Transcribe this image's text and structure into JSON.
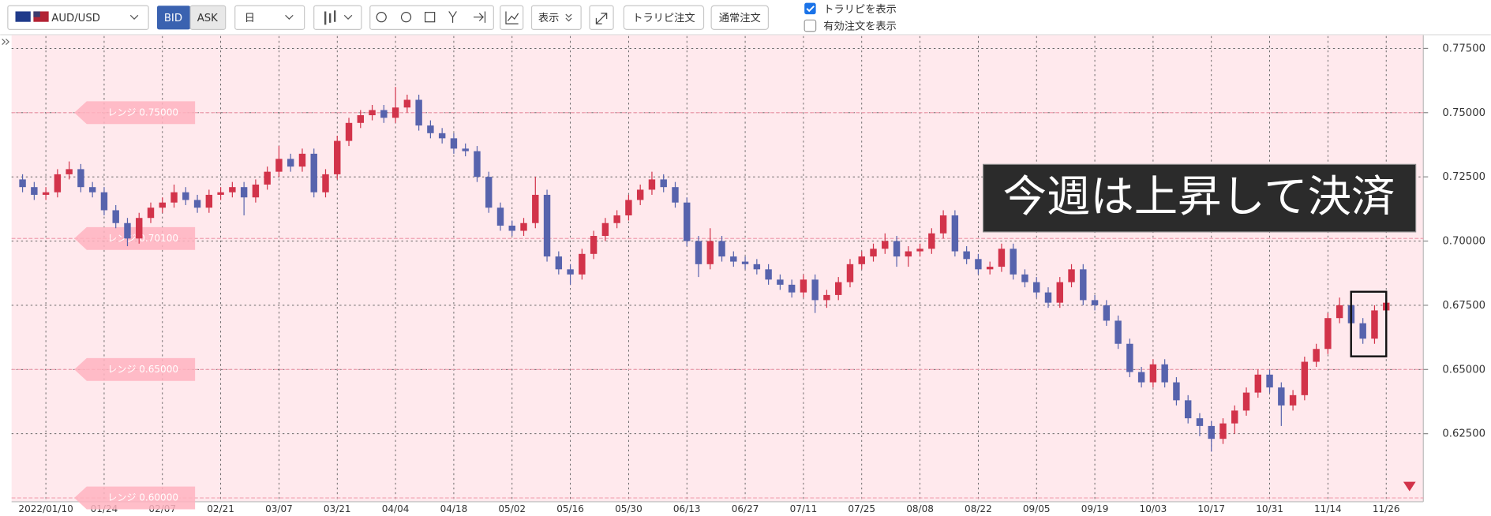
{
  "toolbar": {
    "symbol": "AUD/USD",
    "bid": "BID",
    "ask": "ASK",
    "period": "日",
    "display": "表示",
    "buttons": [
      "トラリピ注文",
      "通常注文"
    ],
    "checkboxes": [
      {
        "label": "トラリピを表示",
        "checked": true
      },
      {
        "label": "有効注文を表示",
        "checked": false
      }
    ]
  },
  "chart_data": {
    "type": "candlestick",
    "categories": [
      null,
      null,
      "2022/01/10",
      null,
      null,
      null,
      null,
      "01/24",
      null,
      null,
      null,
      null,
      "02/07",
      null,
      null,
      null,
      null,
      "02/21",
      null,
      null,
      null,
      null,
      "03/07",
      null,
      null,
      null,
      null,
      "03/21",
      null,
      null,
      null,
      null,
      "04/04",
      null,
      null,
      null,
      null,
      "04/18",
      null,
      null,
      null,
      null,
      "05/02",
      null,
      null,
      null,
      null,
      "05/16",
      null,
      null,
      null,
      null,
      "05/30",
      null,
      null,
      null,
      null,
      "06/13",
      null,
      null,
      null,
      null,
      "06/27",
      null,
      null,
      null,
      null,
      "07/11",
      null,
      null,
      null,
      null,
      "07/25",
      null,
      null,
      null,
      null,
      "08/08",
      null,
      null,
      null,
      null,
      "08/22",
      null,
      null,
      null,
      null,
      "09/05",
      null,
      null,
      null,
      null,
      "09/19",
      null,
      null,
      null,
      null,
      "10/03",
      null,
      null,
      null,
      null,
      "10/17",
      null,
      null,
      null,
      null,
      "10/31",
      null,
      null,
      null,
      null,
      "11/14",
      null,
      null,
      null,
      null,
      "11/26"
    ],
    "open": [
      0.724,
      0.721,
      0.718,
      0.719,
      0.726,
      0.728,
      0.721,
      0.719,
      0.712,
      0.707,
      0.701,
      0.709,
      0.713,
      0.715,
      0.719,
      0.716,
      0.713,
      0.718,
      0.719,
      0.721,
      0.717,
      0.722,
      0.727,
      0.732,
      0.729,
      0.734,
      0.719,
      0.726,
      0.739,
      0.746,
      0.749,
      0.751,
      0.748,
      0.752,
      0.755,
      0.745,
      0.742,
      0.74,
      0.736,
      0.735,
      0.725,
      0.713,
      0.706,
      0.704,
      0.707,
      0.718,
      0.694,
      0.689,
      0.687,
      0.695,
      0.702,
      0.707,
      0.71,
      0.716,
      0.72,
      0.724,
      0.721,
      0.715,
      0.7,
      0.691,
      0.7,
      0.694,
      0.692,
      0.691,
      0.689,
      0.685,
      0.683,
      0.68,
      0.685,
      0.677,
      0.679,
      0.684,
      0.691,
      0.694,
      0.697,
      0.7,
      0.694,
      0.696,
      0.697,
      0.703,
      0.71,
      0.696,
      0.693,
      0.689,
      0.69,
      0.697,
      0.687,
      0.684,
      0.68,
      0.676,
      0.684,
      0.689,
      0.677,
      0.675,
      0.669,
      0.66,
      0.649,
      0.645,
      0.652,
      0.645,
      0.638,
      0.631,
      0.628,
      0.623,
      0.629,
      0.634,
      0.641,
      0.648,
      0.643,
      0.636,
      0.64,
      0.653,
      0.658,
      0.67,
      0.675,
      0.668,
      0.662,
      0.673
    ],
    "high": [
      0.726,
      0.723,
      0.721,
      0.728,
      0.731,
      0.73,
      0.723,
      0.721,
      0.714,
      0.709,
      0.711,
      0.715,
      0.717,
      0.722,
      0.721,
      0.718,
      0.72,
      0.721,
      0.723,
      0.723,
      0.724,
      0.729,
      0.737,
      0.734,
      0.736,
      0.736,
      0.728,
      0.741,
      0.748,
      0.751,
      0.753,
      0.753,
      0.76,
      0.757,
      0.757,
      0.747,
      0.744,
      0.742,
      0.738,
      0.737,
      0.727,
      0.715,
      0.708,
      0.709,
      0.725,
      0.72,
      0.696,
      0.691,
      0.697,
      0.704,
      0.709,
      0.712,
      0.718,
      0.722,
      0.727,
      0.726,
      0.723,
      0.717,
      0.702,
      0.705,
      0.702,
      0.696,
      0.694,
      0.693,
      0.691,
      0.687,
      0.685,
      0.687,
      0.687,
      0.681,
      0.686,
      0.693,
      0.696,
      0.699,
      0.703,
      0.702,
      0.698,
      0.699,
      0.705,
      0.712,
      0.712,
      0.698,
      0.695,
      0.692,
      0.699,
      0.699,
      0.689,
      0.686,
      0.682,
      0.686,
      0.691,
      0.691,
      0.679,
      0.677,
      0.671,
      0.662,
      0.651,
      0.654,
      0.654,
      0.647,
      0.64,
      0.633,
      0.63,
      0.631,
      0.636,
      0.643,
      0.65,
      0.65,
      0.645,
      0.642,
      0.655,
      0.66,
      0.672,
      0.678,
      0.677,
      0.67,
      0.675,
      0.678
    ],
    "low": [
      0.719,
      0.716,
      0.716,
      0.717,
      0.724,
      0.719,
      0.717,
      0.71,
      0.705,
      0.698,
      0.699,
      0.707,
      0.711,
      0.713,
      0.714,
      0.711,
      0.711,
      0.716,
      0.717,
      0.71,
      0.715,
      0.72,
      0.725,
      0.727,
      0.727,
      0.717,
      0.717,
      0.724,
      0.737,
      0.744,
      0.747,
      0.746,
      0.746,
      0.75,
      0.743,
      0.74,
      0.738,
      0.734,
      0.733,
      0.723,
      0.711,
      0.704,
      0.702,
      0.702,
      0.705,
      0.692,
      0.687,
      0.683,
      0.685,
      0.693,
      0.7,
      0.705,
      0.708,
      0.714,
      0.718,
      0.719,
      0.713,
      0.698,
      0.686,
      0.689,
      0.692,
      0.69,
      0.689,
      0.687,
      0.683,
      0.681,
      0.678,
      0.678,
      0.672,
      0.674,
      0.677,
      0.682,
      0.689,
      0.692,
      0.695,
      0.69,
      0.69,
      0.694,
      0.695,
      0.701,
      0.694,
      0.691,
      0.687,
      0.687,
      0.688,
      0.685,
      0.682,
      0.678,
      0.674,
      0.674,
      0.682,
      0.675,
      0.673,
      0.667,
      0.658,
      0.647,
      0.643,
      0.643,
      0.643,
      0.636,
      0.629,
      0.624,
      0.618,
      0.621,
      0.625,
      0.632,
      0.639,
      0.641,
      0.628,
      0.634,
      0.638,
      0.651,
      0.656,
      0.668,
      0.666,
      0.66,
      0.66,
      0.671
    ],
    "close": [
      0.721,
      0.718,
      0.719,
      0.726,
      0.728,
      0.721,
      0.719,
      0.712,
      0.707,
      0.701,
      0.709,
      0.713,
      0.715,
      0.719,
      0.716,
      0.713,
      0.718,
      0.719,
      0.721,
      0.717,
      0.722,
      0.727,
      0.732,
      0.729,
      0.734,
      0.719,
      0.726,
      0.739,
      0.746,
      0.749,
      0.751,
      0.748,
      0.752,
      0.755,
      0.745,
      0.742,
      0.74,
      0.736,
      0.735,
      0.725,
      0.713,
      0.706,
      0.704,
      0.707,
      0.718,
      0.694,
      0.689,
      0.687,
      0.695,
      0.702,
      0.707,
      0.71,
      0.716,
      0.72,
      0.724,
      0.721,
      0.715,
      0.7,
      0.691,
      0.7,
      0.694,
      0.692,
      0.691,
      0.689,
      0.685,
      0.683,
      0.68,
      0.685,
      0.677,
      0.679,
      0.684,
      0.691,
      0.694,
      0.697,
      0.7,
      0.694,
      0.696,
      0.697,
      0.703,
      0.71,
      0.696,
      0.693,
      0.689,
      0.69,
      0.697,
      0.687,
      0.684,
      0.68,
      0.676,
      0.684,
      0.689,
      0.677,
      0.675,
      0.669,
      0.66,
      0.649,
      0.645,
      0.652,
      0.645,
      0.638,
      0.631,
      0.628,
      0.623,
      0.629,
      0.634,
      0.641,
      0.648,
      0.643,
      0.636,
      0.64,
      0.653,
      0.658,
      0.67,
      0.675,
      0.668,
      0.662,
      0.673,
      0.676
    ],
    "up_color": "#d2334a",
    "down_color": "#5763ad",
    "ylim": [
      0.5985,
      0.7798
    ],
    "yticks": [
      {
        "value": 0.625,
        "label": "0.62500"
      },
      {
        "value": 0.65,
        "label": "0.65000"
      },
      {
        "value": 0.675,
        "label": "0.67500"
      },
      {
        "value": 0.7,
        "label": "0.70000"
      },
      {
        "value": 0.725,
        "label": "0.72500"
      },
      {
        "value": 0.75,
        "label": "0.75000"
      },
      {
        "value": 0.775,
        "label": "0.77500"
      }
    ],
    "grid": true,
    "range_lines": [
      {
        "label": "レンジ 0.75000",
        "value": 0.75
      },
      {
        "label": "レンジ 0.70100",
        "value": 0.701
      },
      {
        "label": "レンジ 0.65000",
        "value": 0.65
      },
      {
        "label": "レンジ 0.60000",
        "value": 0.6
      }
    ],
    "annotation": "今週は上昇して決済"
  }
}
